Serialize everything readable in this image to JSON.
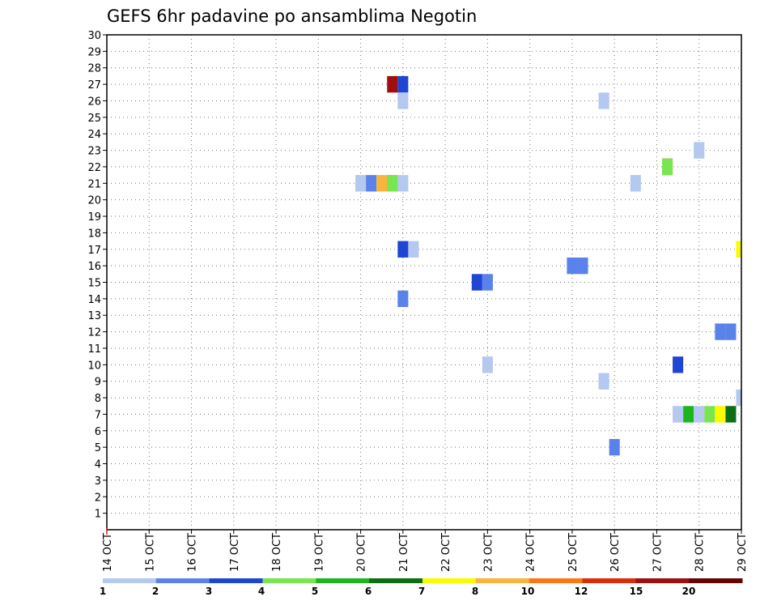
{
  "chart_data": {
    "type": "heatmap",
    "title": "GEFS 6hr padavine po ansamblima Negotin",
    "xlabel": "",
    "ylabel": "",
    "x_axis": {
      "type": "date",
      "start": "2023-10-14",
      "end": "2023-10-29",
      "tick_labels": [
        "14 OCT",
        "15 OCT",
        "16 OCT",
        "17 OCT",
        "18 OCT",
        "19 OCT",
        "20 OCT",
        "21 OCT",
        "22 OCT",
        "23 OCT",
        "24 OCT",
        "25 OCT",
        "26 OCT",
        "27 OCT",
        "28 OCT",
        "29 OCT"
      ]
    },
    "y_axis": {
      "range": [
        0,
        30
      ],
      "tick_labels": [
        "1",
        "2",
        "3",
        "4",
        "5",
        "6",
        "7",
        "8",
        "9",
        "10",
        "11",
        "12",
        "13",
        "14",
        "15",
        "16",
        "17",
        "18",
        "19",
        "20",
        "21",
        "22",
        "23",
        "24",
        "25",
        "26",
        "27",
        "28",
        "29",
        "30"
      ]
    },
    "grid": "dotted",
    "colorbar": {
      "placement": "bottom",
      "levels": [
        "1",
        "2",
        "3",
        "4",
        "5",
        "6",
        "7",
        "8",
        "10",
        "12",
        "15",
        "20"
      ],
      "colors": [
        "#b4c8f0",
        "#5a82eb",
        "#1e46d2",
        "#78e650",
        "#1eb41e",
        "#0a6e14",
        "#fafa00",
        "#fab43c",
        "#fa7814",
        "#dc2d0a",
        "#a00f0f",
        "#640505"
      ]
    },
    "cells": [
      {
        "time": "2023-10-20 18:00",
        "member": 27,
        "bin": 10
      },
      {
        "time": "2023-10-21 00:00",
        "member": 27,
        "bin": 2
      },
      {
        "time": "2023-10-21 00:00",
        "member": 26,
        "bin": 0
      },
      {
        "time": "2023-10-25 18:00",
        "member": 26,
        "bin": 0
      },
      {
        "time": "2023-10-28 00:00",
        "member": 23,
        "bin": 0
      },
      {
        "time": "2023-10-27 06:00",
        "member": 22,
        "bin": 9
      },
      {
        "time": "2023-10-27 06:00",
        "member": 22,
        "bin": 3
      },
      {
        "time": "2023-10-20 00:00",
        "member": 21,
        "bin": 0
      },
      {
        "time": "2023-10-20 06:00",
        "member": 21,
        "bin": 1
      },
      {
        "time": "2023-10-20 12:00",
        "member": 21,
        "bin": 7
      },
      {
        "time": "2023-10-20 18:00",
        "member": 21,
        "bin": 8
      },
      {
        "time": "2023-10-20 18:00",
        "member": 21,
        "bin": 3
      },
      {
        "time": "2023-10-21 00:00",
        "member": 21,
        "bin": 0
      },
      {
        "time": "2023-10-26 12:00",
        "member": 21,
        "bin": 0
      },
      {
        "time": "2023-10-21 00:00",
        "member": 17,
        "bin": 2
      },
      {
        "time": "2023-10-21 06:00",
        "member": 17,
        "bin": 0
      },
      {
        "time": "2023-10-29 00:00",
        "member": 17,
        "bin": 6
      },
      {
        "time": "2023-10-25 00:00",
        "member": 16,
        "bin": 1
      },
      {
        "time": "2023-10-25 06:00",
        "member": 16,
        "bin": 1
      },
      {
        "time": "2023-10-22 18:00",
        "member": 15,
        "bin": 2
      },
      {
        "time": "2023-10-23 00:00",
        "member": 15,
        "bin": 1
      },
      {
        "time": "2023-10-21 00:00",
        "member": 14,
        "bin": 1
      },
      {
        "time": "2023-10-28 12:00",
        "member": 12,
        "bin": 1
      },
      {
        "time": "2023-10-28 18:00",
        "member": 12,
        "bin": 1
      },
      {
        "time": "2023-10-23 00:00",
        "member": 10,
        "bin": 0
      },
      {
        "time": "2023-10-27 12:00",
        "member": 10,
        "bin": 2
      },
      {
        "time": "2023-10-25 18:00",
        "member": 9,
        "bin": 0
      },
      {
        "time": "2023-10-29 00:00",
        "member": 8,
        "bin": 0
      },
      {
        "time": "2023-10-27 12:00",
        "member": 7,
        "bin": 0
      },
      {
        "time": "2023-10-27 18:00",
        "member": 7,
        "bin": 4
      },
      {
        "time": "2023-10-28 00:00",
        "member": 7,
        "bin": 0
      },
      {
        "time": "2023-10-28 06:00",
        "member": 7,
        "bin": 3
      },
      {
        "time": "2023-10-28 12:00",
        "member": 7,
        "bin": 6
      },
      {
        "time": "2023-10-28 18:00",
        "member": 7,
        "bin": 5
      },
      {
        "time": "2023-10-26 00:00",
        "member": 5,
        "bin": 1
      }
    ]
  }
}
